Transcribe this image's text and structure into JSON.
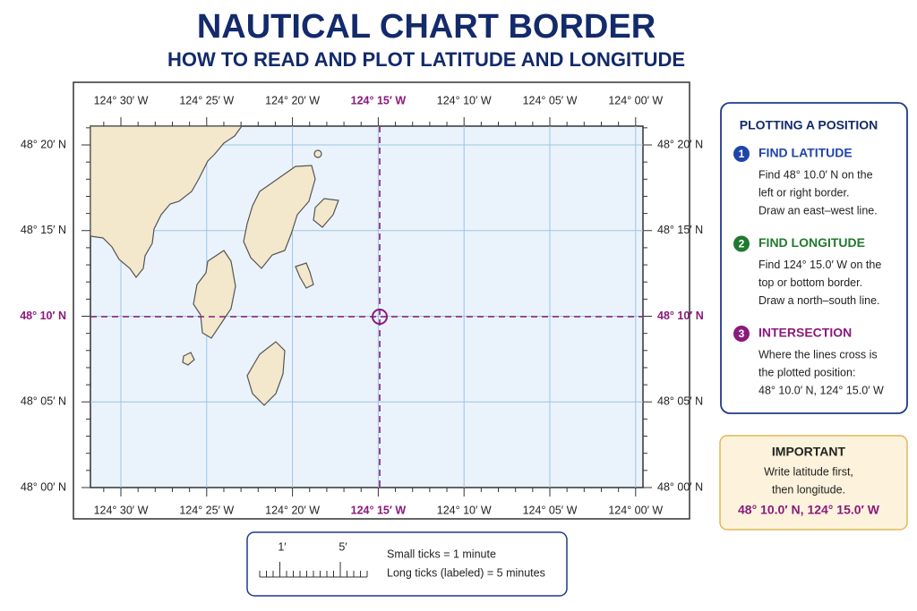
{
  "header": {
    "title": "NAUTICAL CHART BORDER",
    "subtitle": "HOW TO READ AND PLOT LATITUDE AND LONGITUDE"
  },
  "chart_border": {
    "longitude_labels": [
      "124° 30′ W",
      "124° 25′ W",
      "124° 20′ W",
      "124° 15′ W",
      "124° 10′ W",
      "124° 05′ W",
      "124° 00′ W"
    ],
    "latitude_labels": [
      "48° 20′ N",
      "48° 15′ N",
      "48° 10′ N",
      "48° 05′ N",
      "48° 00′ N"
    ]
  },
  "panel": {
    "title": "PLOTTING A POSITION",
    "steps": [
      {
        "number": "1",
        "heading": "FIND LATITUDE",
        "lines": [
          "Find 48° 10.0′ N on the",
          "left or right border.",
          "Draw an east–west line."
        ]
      },
      {
        "number": "2",
        "heading": "FIND LONGITUDE",
        "lines": [
          "Find 124° 15.0′ W on the",
          "top or bottom border.",
          "Draw a north–south line."
        ]
      },
      {
        "number": "3",
        "heading": "INTERSECTION",
        "lines": [
          "Where the lines cross is",
          "the plotted position:",
          "48° 10.0′ N, 124° 15.0′ W"
        ]
      }
    ]
  },
  "important": {
    "title": "IMPORTANT",
    "lines": [
      "Write latitude first,",
      "then longitude."
    ],
    "position": "48° 10.0′ N, 124° 15.0′ W"
  },
  "legend": {
    "scale_labels": [
      "1′",
      "5′"
    ],
    "lines": [
      "Small ticks = 1 minute",
      "Long ticks (labeled) = 5 minutes"
    ]
  }
}
